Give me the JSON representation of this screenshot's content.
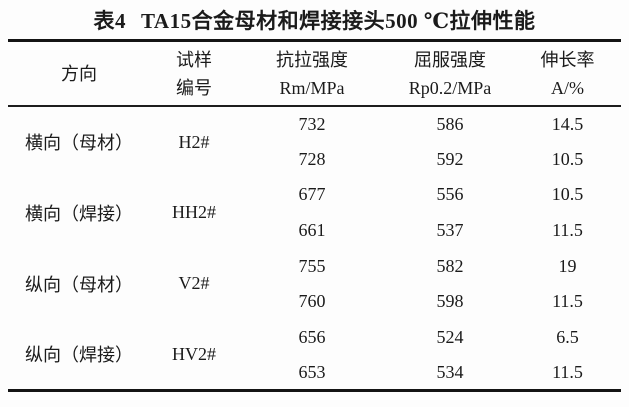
{
  "caption": {
    "label": "表4",
    "title": "TA15合金母材和焊接接头500 ℃拉伸性能"
  },
  "table": {
    "headers": {
      "direction": "方向",
      "specimen_line1": "试样",
      "specimen_line2": "编号",
      "tensile_line1": "抗拉强度",
      "tensile_line2": "Rm/MPa",
      "yield_line1": "屈服强度",
      "yield_line2": "Rp0.2/MPa",
      "elongation_line1": "伸长率",
      "elongation_line2": "A/%"
    },
    "groups": [
      {
        "direction": "横向（母材）",
        "specimen": "H2#",
        "rows": [
          {
            "rm": "732",
            "rp": "586",
            "a": "14.5"
          },
          {
            "rm": "728",
            "rp": "592",
            "a": "10.5"
          }
        ]
      },
      {
        "direction": "横向（焊接）",
        "specimen": "HH2#",
        "rows": [
          {
            "rm": "677",
            "rp": "556",
            "a": "10.5"
          },
          {
            "rm": "661",
            "rp": "537",
            "a": "11.5"
          }
        ]
      },
      {
        "direction": "纵向（母材）",
        "specimen": "V2#",
        "rows": [
          {
            "rm": "755",
            "rp": "582",
            "a": "19"
          },
          {
            "rm": "760",
            "rp": "598",
            "a": "11.5"
          }
        ]
      },
      {
        "direction": "纵向（焊接）",
        "specimen": "HV2#",
        "rows": [
          {
            "rm": "656",
            "rp": "524",
            "a": "6.5"
          },
          {
            "rm": "653",
            "rp": "534",
            "a": "11.5"
          }
        ]
      }
    ]
  }
}
